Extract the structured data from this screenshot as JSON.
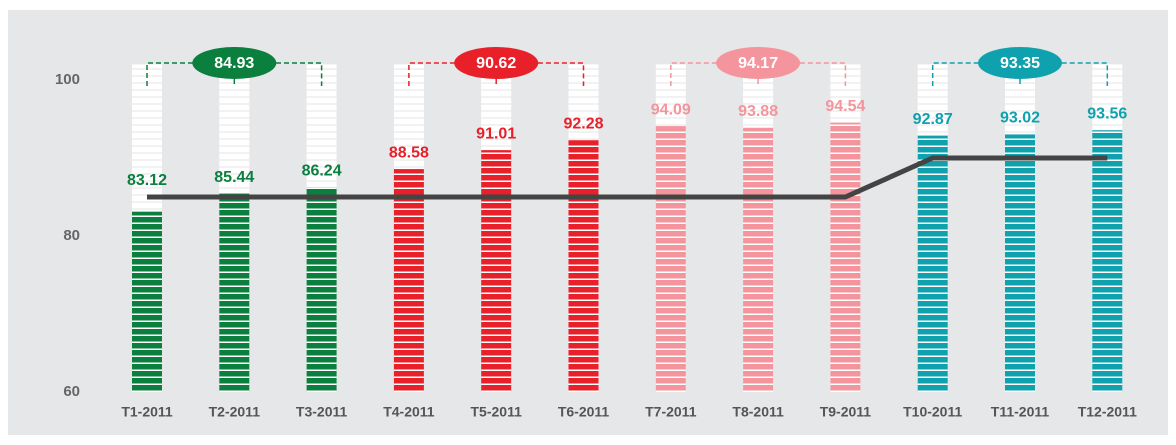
{
  "chart_data": {
    "type": "bar",
    "categories": [
      "T1-2011",
      "T2-2011",
      "T3-2011",
      "T4-2011",
      "T5-2011",
      "T6-2011",
      "T7-2011",
      "T8-2011",
      "T9-2011",
      "T10-2011",
      "T11-2011",
      "T12-2011"
    ],
    "values": [
      83.12,
      85.44,
      86.24,
      88.58,
      91.01,
      92.28,
      94.09,
      93.88,
      94.54,
      92.87,
      93.02,
      93.56
    ],
    "groups": [
      {
        "value": 84.93,
        "color": "#0b7f3e"
      },
      {
        "value": 90.62,
        "color": "#e8202a"
      },
      {
        "value": 94.17,
        "color": "#f4959d"
      },
      {
        "value": 93.35,
        "color": "#0fa1ad"
      }
    ],
    "line": {
      "values": [
        85,
        85,
        85,
        85,
        85,
        85,
        85,
        85,
        85,
        90,
        90,
        90
      ],
      "color": "#444444"
    },
    "ylim": [
      60,
      102
    ],
    "yticks": [
      60,
      80,
      100
    ]
  }
}
